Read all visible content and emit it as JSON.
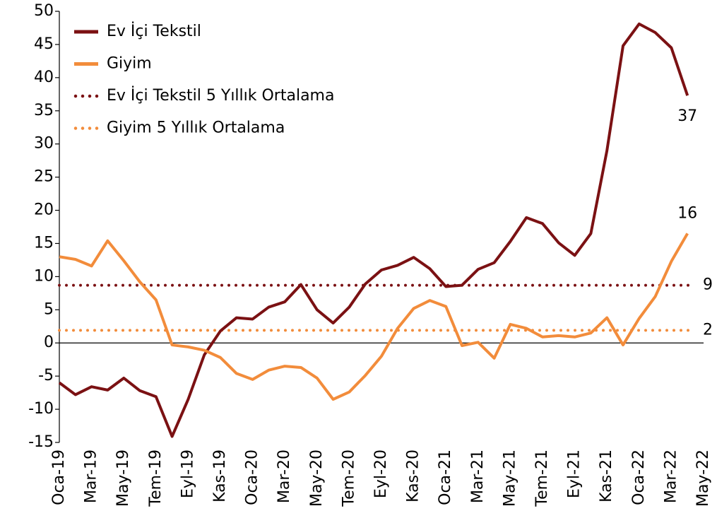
{
  "chart_data": {
    "type": "line",
    "categories": [
      "Oca-19",
      null,
      "Mar-19",
      null,
      "May-19",
      null,
      "Tem-19",
      null,
      "Eyl-19",
      null,
      "Kas-19",
      null,
      "Oca-20",
      null,
      "Mar-20",
      null,
      "May-20",
      null,
      "Tem-20",
      null,
      "Eyl-20",
      null,
      "Kas-20",
      null,
      "Oca-21",
      null,
      "Mar-21",
      null,
      "May-21",
      null,
      "Tem-21",
      null,
      "Eyl-21",
      null,
      "Kas-21",
      null,
      "Oca-22",
      null,
      "Mar-22",
      null,
      "May-22"
    ],
    "series": [
      {
        "name": "Ev İçi Tekstil",
        "color": "#7b1113",
        "values": [
          -6,
          -7.8,
          -6.6,
          -7.1,
          -5.3,
          -7.2,
          -8.1,
          -14.1,
          -8.5,
          -1.8,
          1.8,
          3.8,
          3.6,
          5.4,
          6.2,
          8.8,
          5,
          3,
          5.4,
          8.9,
          11,
          11.7,
          12.9,
          11.2,
          8.5,
          8.7,
          11.1,
          12.1,
          15.3,
          18.9,
          18,
          15.1,
          13.2,
          16.5,
          29,
          44.8,
          48.1,
          46.8,
          44.5,
          37.3,
          null
        ],
        "value_labels": [
          null,
          null,
          null,
          null,
          null,
          null,
          null,
          null,
          null,
          null,
          null,
          null,
          null,
          null,
          null,
          null,
          null,
          null,
          null,
          null,
          null,
          null,
          null,
          null,
          null,
          null,
          null,
          null,
          null,
          null,
          null,
          null,
          null,
          null,
          null,
          null,
          null,
          null,
          null,
          "37",
          null
        ]
      },
      {
        "name": "Giyim",
        "color": "#f28c3b",
        "values": [
          13,
          12.6,
          11.6,
          15.4,
          12.4,
          9.2,
          6.5,
          -0.3,
          -0.6,
          -1.1,
          -2.2,
          -4.6,
          -5.5,
          -4.1,
          -3.5,
          -3.7,
          -5.3,
          -8.5,
          -7.4,
          -4.9,
          -2,
          2.2,
          5.2,
          6.4,
          5.5,
          -0.4,
          0.1,
          -2.3,
          2.8,
          2.2,
          0.9,
          1.1,
          0.9,
          1.5,
          3.8,
          -0.3,
          3.7,
          7,
          12.3,
          16.5,
          null
        ],
        "value_labels": [
          null,
          null,
          null,
          null,
          null,
          null,
          null,
          null,
          null,
          null,
          null,
          null,
          null,
          null,
          null,
          null,
          null,
          null,
          null,
          null,
          null,
          null,
          null,
          null,
          null,
          null,
          null,
          null,
          null,
          null,
          null,
          null,
          null,
          null,
          null,
          null,
          null,
          null,
          null,
          "16",
          null
        ]
      }
    ],
    "averages": [
      {
        "name": "Ev İçi Tekstil 5 Yıllık Ortalama",
        "color": "#7b1113",
        "value": 8.7,
        "value_label": "9"
      },
      {
        "name": "Giyim 5 Yıllık Ortalama",
        "color": "#f28c3b",
        "value": 1.9,
        "value_label": "2"
      }
    ],
    "ylim": [
      -15,
      50
    ],
    "yticks": [
      -15,
      -10,
      -5,
      0,
      5,
      10,
      15,
      20,
      25,
      30,
      35,
      40,
      45,
      50
    ],
    "legend": "top-left",
    "grid": false
  }
}
